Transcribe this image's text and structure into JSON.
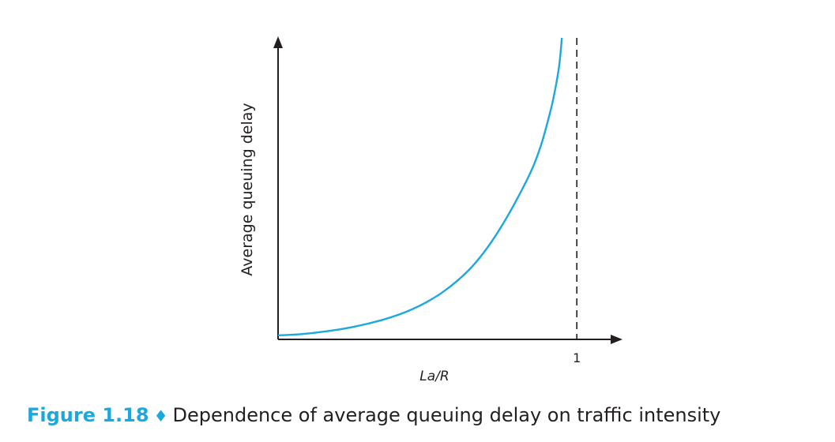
{
  "chart_data": {
    "type": "line",
    "title": "",
    "xlabel": "La/R",
    "ylabel": "Average queuing delay",
    "x_ticks": [
      "1"
    ],
    "asymptote_x": 1,
    "asymptote_style": "dashed",
    "xlim": [
      0,
      1.1
    ],
    "ylim": [
      0,
      1
    ],
    "grid": false,
    "legend": "none",
    "series_color": "#1ba8df",
    "series": [
      {
        "x": [
          0.0,
          0.05,
          0.1,
          0.15,
          0.2,
          0.25,
          0.3,
          0.35,
          0.4,
          0.45,
          0.5,
          0.55,
          0.6,
          0.65,
          0.7,
          0.75,
          0.8,
          0.85,
          0.88,
          0.9,
          0.92,
          0.94,
          0.95
        ],
        "y": [
          0.003,
          0.005,
          0.009,
          0.015,
          0.022,
          0.031,
          0.042,
          0.055,
          0.071,
          0.091,
          0.116,
          0.147,
          0.186,
          0.234,
          0.296,
          0.372,
          0.46,
          0.56,
          0.64,
          0.71,
          0.79,
          0.9,
          1.0
        ]
      }
    ]
  },
  "caption": {
    "figure_number": "Figure 1.18",
    "separator": "♦",
    "text": "Dependence of average queuing delay on traffic intensity",
    "color": "#1ba8df"
  }
}
